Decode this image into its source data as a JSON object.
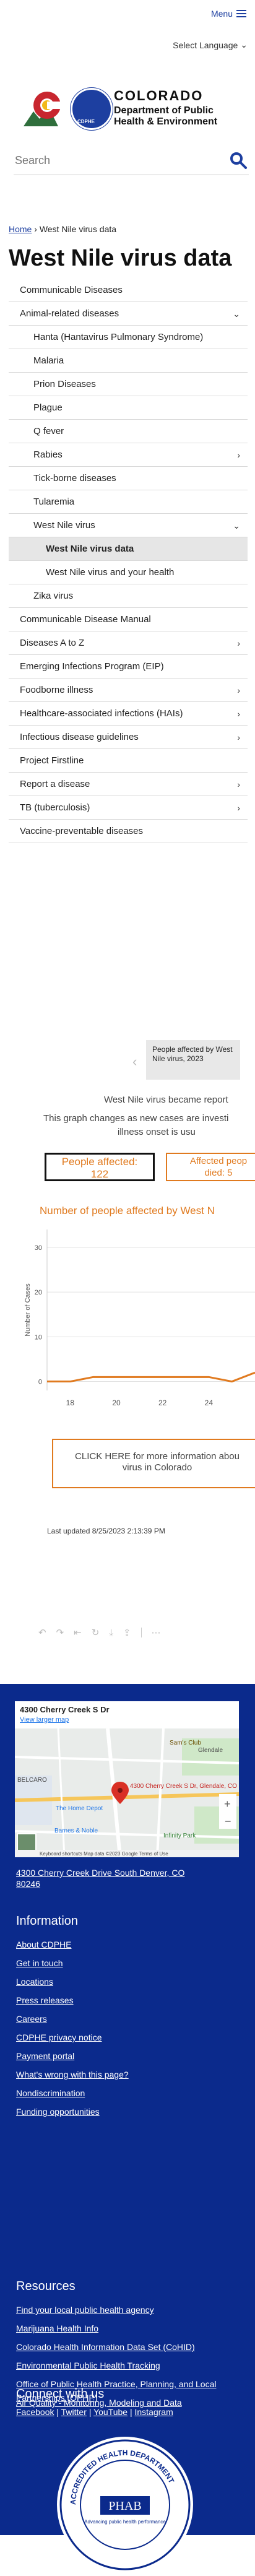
{
  "header": {
    "menu_label": "Menu",
    "language_label": "Select Language"
  },
  "logo": {
    "line1": "COLORADO",
    "line2": "Department of Public",
    "line3": "Health & Environment",
    "seal_text": "CDPHE"
  },
  "search": {
    "placeholder": "Search"
  },
  "breadcrumb": {
    "home": "Home",
    "sep": "›",
    "current": "West Nile virus data"
  },
  "page_title": "West Nile virus data",
  "nav": [
    {
      "label": "Communicable Diseases",
      "level": 1,
      "chevron": ""
    },
    {
      "label": "Animal-related diseases",
      "level": 1,
      "chevron": "⌄"
    },
    {
      "label": "Hanta (Hantavirus Pulmonary Syndrome)",
      "level": 2,
      "chevron": ""
    },
    {
      "label": "Malaria",
      "level": 2,
      "chevron": ""
    },
    {
      "label": "Prion Diseases",
      "level": 2,
      "chevron": ""
    },
    {
      "label": "Plague",
      "level": 2,
      "chevron": ""
    },
    {
      "label": "Q fever",
      "level": 2,
      "chevron": ""
    },
    {
      "label": "Rabies",
      "level": 2,
      "chevron": "›"
    },
    {
      "label": "Tick-borne diseases",
      "level": 2,
      "chevron": ""
    },
    {
      "label": "Tularemia",
      "level": 2,
      "chevron": ""
    },
    {
      "label": "West Nile virus",
      "level": 2,
      "chevron": "⌄"
    },
    {
      "label": "West Nile virus data",
      "level": 3,
      "chevron": "",
      "active": true
    },
    {
      "label": "West Nile virus and your health",
      "level": 3,
      "chevron": ""
    },
    {
      "label": "Zika virus",
      "level": 2,
      "chevron": ""
    },
    {
      "label": "Communicable Disease Manual",
      "level": 1,
      "chevron": ""
    },
    {
      "label": "Diseases A to Z",
      "level": 1,
      "chevron": "›"
    },
    {
      "label": "Emerging Infections Program (EIP)",
      "level": 1,
      "chevron": ""
    },
    {
      "label": "Foodborne illness",
      "level": 1,
      "chevron": "›"
    },
    {
      "label": "Healthcare-associated infections (HAIs)",
      "level": 1,
      "chevron": "›"
    },
    {
      "label": "Infectious disease guidelines",
      "level": 1,
      "chevron": "›"
    },
    {
      "label": "Project Firstline",
      "level": 1,
      "chevron": ""
    },
    {
      "label": "Report a disease",
      "level": 1,
      "chevron": "›"
    },
    {
      "label": "TB (tuberculosis)",
      "level": 1,
      "chevron": "›"
    },
    {
      "label": "Vaccine-preventable diseases",
      "level": 1,
      "chevron": ""
    }
  ],
  "infographic": {
    "tooltip": "People affected by West Nile virus, 2023",
    "line1": "West Nile virus became report",
    "line2": "This graph changes as new cases are investi",
    "line3": "illness onset is usu",
    "stat_affected_label": "People affected:",
    "stat_affected_value": "122",
    "stat_died_label": "Affected peop",
    "stat_died_value": "died: 5",
    "chart_title": "Number of people affected by West N",
    "cta": "CLICK HERE for more information abou",
    "cta2": "virus in Colorado",
    "updated": "Last updated 8/25/2023 2:13:39 PM"
  },
  "chart_data": {
    "type": "line",
    "title": "Number of people affected by West N",
    "ylabel": "Number of Cases",
    "xlabel": "",
    "x": [
      17,
      18,
      19,
      20,
      21,
      22,
      23,
      24,
      25,
      26
    ],
    "series": [
      {
        "name": "",
        "values": [
          0,
          0,
          1,
          1,
          1,
          1,
          1,
          1,
          0,
          2
        ]
      }
    ],
    "yticks": [
      0,
      10,
      20,
      30
    ],
    "xticks": [
      18,
      20,
      22,
      24
    ],
    "ylim": [
      -2,
      34
    ],
    "xlim": [
      17,
      26
    ],
    "grid": true,
    "color": "#e07a1f"
  },
  "toolbar": {
    "undo": "↶",
    "redo": "↷",
    "revert": "⇤",
    "refresh": "↻",
    "download": "⤓",
    "share": "⇪",
    "more": "⋯"
  },
  "footer": {
    "map_address": "4300 Cherry Creek S Dr",
    "map_link": "View larger map",
    "map_pin": "4300 Cherry Creek S Dr, Glendale, CO 80246",
    "map_labels": [
      "Sam's Club",
      "Glendale",
      "The Home Depot",
      "BELCARO",
      "Barnes & Noble",
      "Infinity Park"
    ],
    "map_attrib": "Keyboard shortcuts  Map data ©2023 Google  Terms of Use",
    "address_line1": "4300 Cherry Creek Drive South Denver, CO",
    "address_line2": "80246",
    "information_heading": "Information",
    "information_links": [
      "About CDPHE",
      "Get in touch",
      "Locations",
      "Press releases",
      "Careers",
      "CDPHE privacy notice",
      "Payment portal",
      "What's wrong with this page?",
      "Nondiscrimination",
      "Funding opportunities"
    ],
    "resources_heading": "Resources",
    "resources_links": [
      "Find your local public health agency",
      "Marijuana Health Info",
      "Colorado Health Information Data Set (CoHID)",
      "Environmental Public Health Tracking",
      "Office of Public Health Practice, Planning, and Local Partnerships (OPHP)",
      "Air Quality - Monitoring, Modeling and Data"
    ],
    "connect_heading": "Connect with us",
    "social": [
      "Facebook",
      "Twitter",
      "YouTube",
      "Instagram"
    ],
    "seal_text": "ACCREDITED HEALTH DEPARTMENT",
    "seal_brand": "PHAB",
    "seal_sub": "Advancing public health performance"
  },
  "colors": {
    "brand_blue": "#0b2a8c",
    "link_blue": "#1d3fa0",
    "accent_orange": "#e07a1f"
  }
}
